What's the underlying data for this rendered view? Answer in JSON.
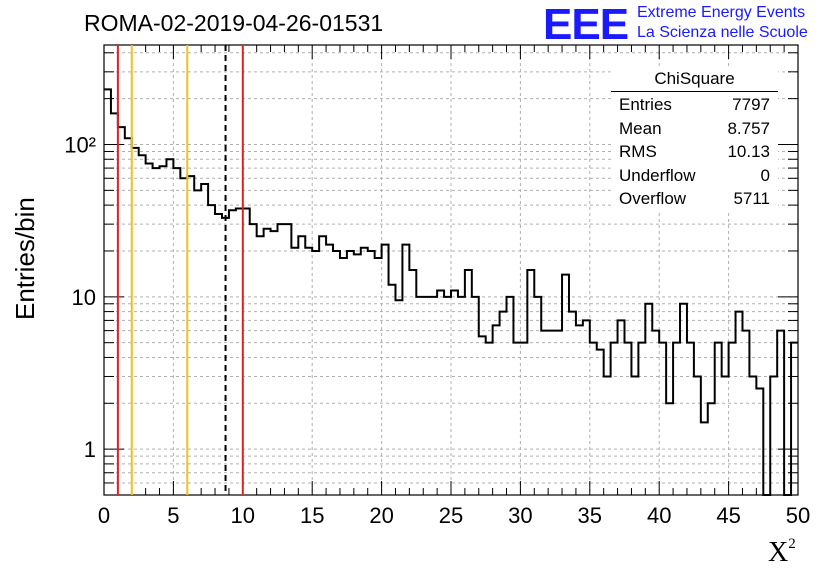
{
  "title": "ROMA-02-2019-04-26-01531",
  "logo": {
    "mark": "EEE",
    "line1": "Extreme Energy Events",
    "line2": "La Scienza nelle Scuole",
    "color": "#1a1aff"
  },
  "stats_box": {
    "title": "ChiSquare",
    "rows": [
      {
        "label": "Entries",
        "value": "7797"
      },
      {
        "label": "Mean",
        "value": "8.757"
      },
      {
        "label": "RMS",
        "value": "10.13"
      },
      {
        "label": "Underflow",
        "value": "0"
      },
      {
        "label": "Overflow",
        "value": "5711"
      }
    ]
  },
  "chart_data": {
    "type": "histogram",
    "title": "ROMA-02-2019-04-26-01531",
    "xlabel": "X",
    "xlabel_superscript": "2",
    "ylabel": "Entries/bin",
    "xlim": [
      0,
      50
    ],
    "ylim": [
      0.5,
      450
    ],
    "y_scale": "log",
    "grid": true,
    "bin_width": 0.5,
    "x_ticks": [
      0,
      5,
      10,
      15,
      20,
      25,
      30,
      35,
      40,
      45,
      50
    ],
    "x_tick_labels": [
      "0",
      "5",
      "10",
      "15",
      "20",
      "25",
      "30",
      "35",
      "40",
      "45",
      "50"
    ],
    "y_ticks": [
      1,
      10,
      100
    ],
    "y_tick_labels": [
      "1",
      "10",
      "10²"
    ],
    "bin_contents": [
      230,
      160,
      130,
      110,
      95,
      85,
      75,
      70,
      72,
      80,
      70,
      60,
      62,
      50,
      55,
      40,
      35,
      33,
      37,
      38,
      38,
      30,
      25,
      28,
      27,
      30,
      30,
      21,
      25,
      21,
      20,
      25,
      22,
      20,
      18,
      20,
      19,
      21,
      20,
      18,
      22,
      12,
      9.5,
      22,
      15,
      10,
      10,
      10,
      11,
      10,
      11,
      10,
      15,
      10,
      5.5,
      5,
      6.5,
      8,
      10,
      5,
      5,
      15,
      10,
      6,
      6,
      6,
      14,
      8,
      6.5,
      7,
      5,
      4.5,
      3,
      5,
      7,
      5,
      3,
      5,
      9,
      6,
      5,
      2,
      5,
      9,
      5,
      3,
      1.5,
      2,
      5,
      3,
      5,
      8,
      6,
      3,
      2.5,
      0,
      3,
      6,
      0,
      5
    ],
    "vertical_lines": [
      {
        "x": 1,
        "color": "#e02020",
        "style": "solid"
      },
      {
        "x": 2,
        "color": "#f0c020",
        "style": "solid"
      },
      {
        "x": 6,
        "color": "#f0c020",
        "style": "solid"
      },
      {
        "x": 8.757,
        "color": "#000000",
        "style": "dashed"
      },
      {
        "x": 10,
        "color": "#e02020",
        "style": "solid"
      }
    ]
  }
}
